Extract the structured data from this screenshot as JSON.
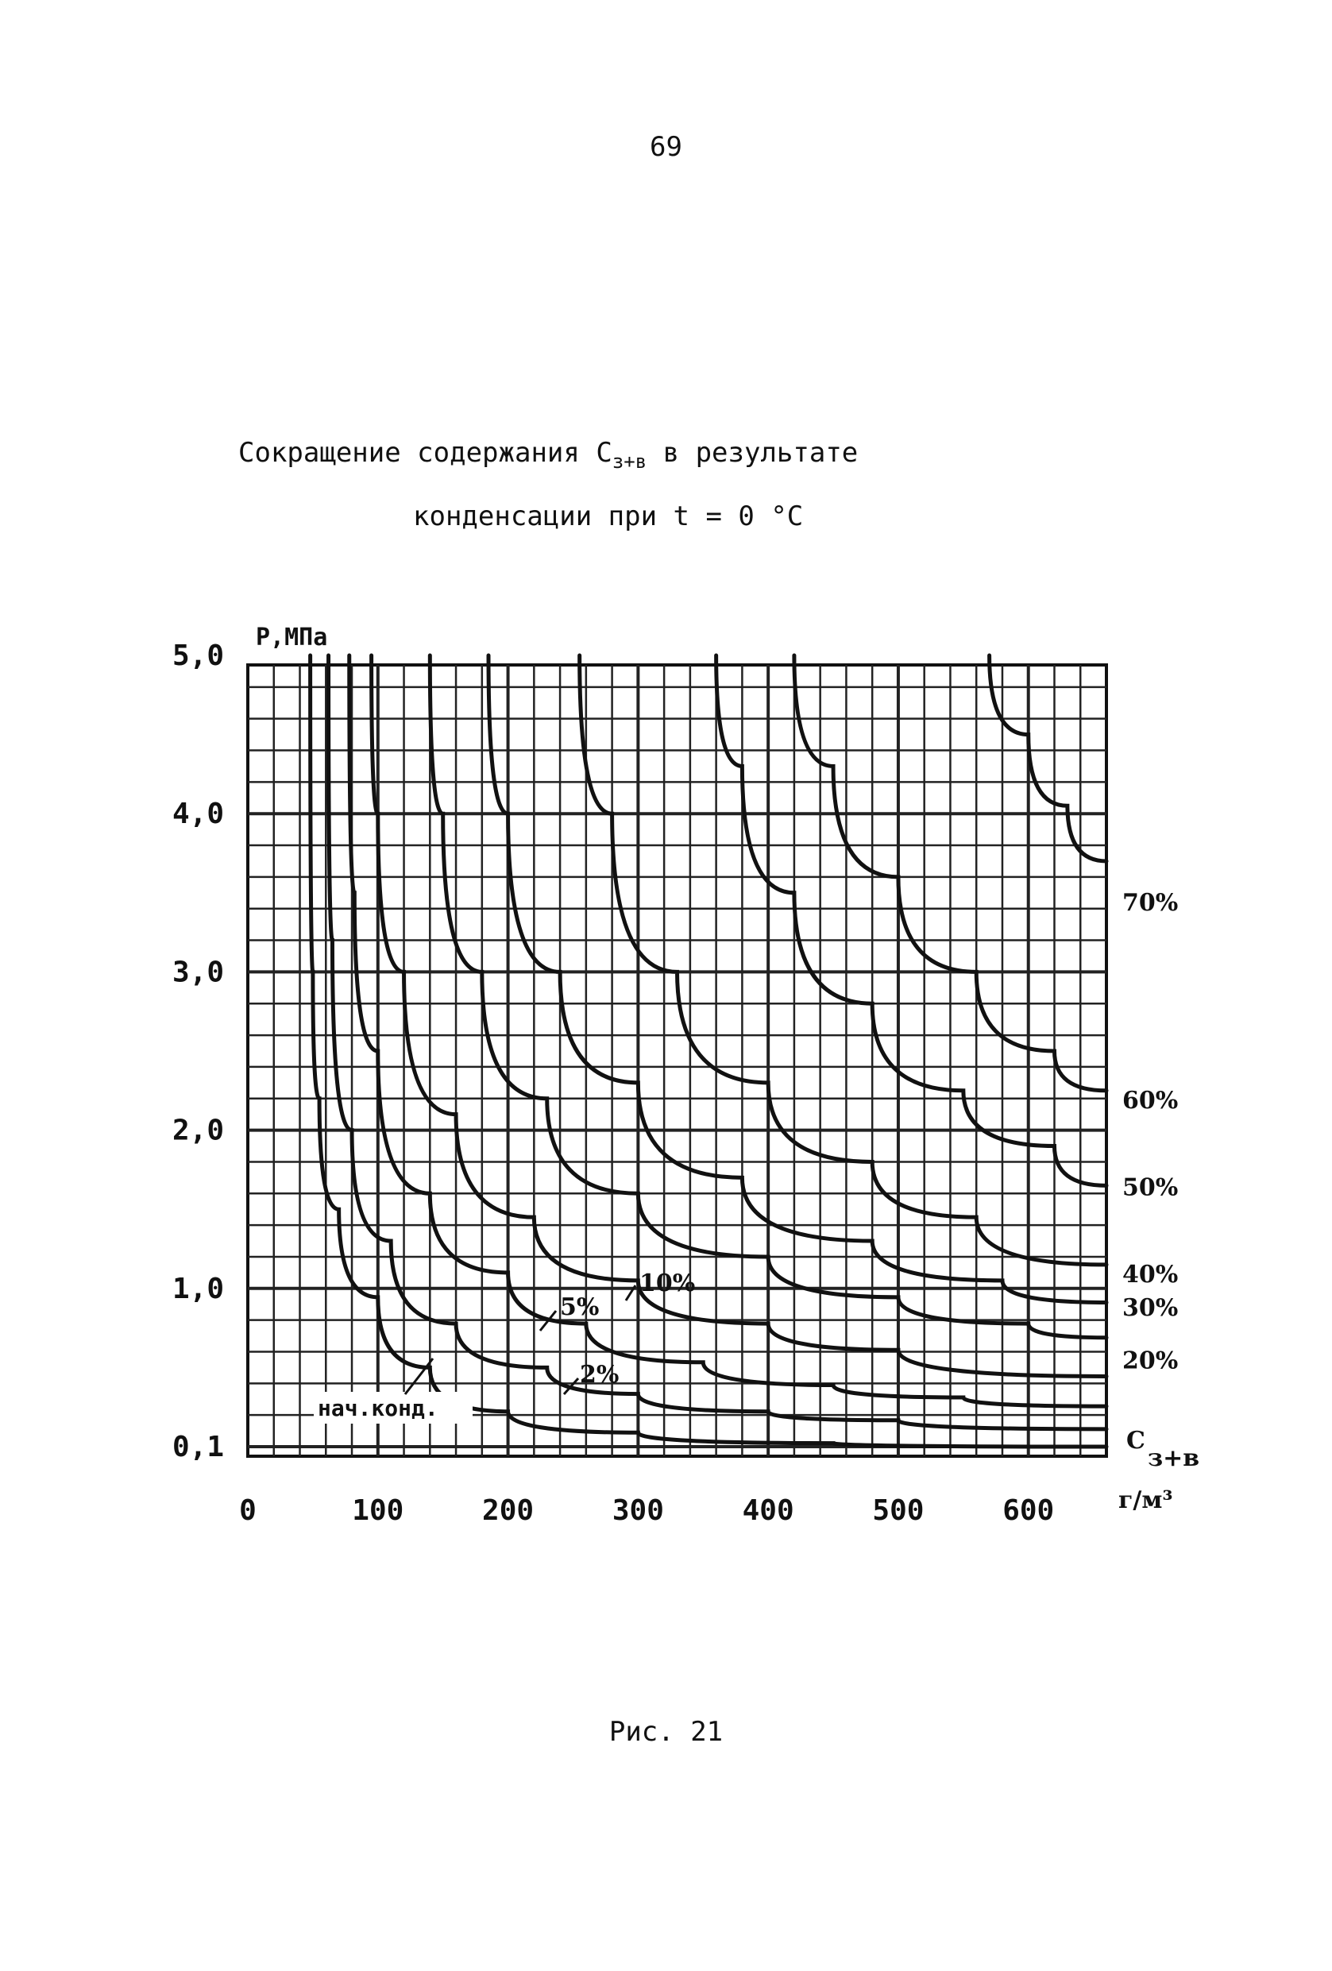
{
  "page": {
    "number": "69",
    "title_line1_pre": "Сокращение содержания С",
    "title_line1_sub": "з+в",
    "title_line1_post": " в результате",
    "title_line2": "конденсации при t = 0 °C",
    "figure_caption": "Рис. 21"
  },
  "chart_data": {
    "type": "line",
    "ylabel": "Р,МПа",
    "xlabel": "Сз+в, г/м³",
    "xlim": [
      0,
      660
    ],
    "ylim": [
      0.1,
      5.0
    ],
    "grid": true,
    "x_ticks": [
      "0",
      "100",
      "200",
      "300",
      "400",
      "500",
      "600"
    ],
    "y_ticks": [
      "0,1",
      "1,0",
      "2,0",
      "3,0",
      "4,0",
      "5,0"
    ],
    "annotation": "нач.конд.",
    "series": [
      {
        "name": "нач.конд.",
        "label_near_curve": true,
        "points": [
          [
            48,
            5.0
          ],
          [
            50,
            3.0
          ],
          [
            55,
            2.2
          ],
          [
            70,
            1.5
          ],
          [
            100,
            0.95
          ],
          [
            140,
            0.55
          ],
          [
            200,
            0.3
          ],
          [
            300,
            0.18
          ],
          [
            450,
            0.12
          ],
          [
            660,
            0.1
          ]
        ]
      },
      {
        "name": "2%",
        "points": [
          [
            62,
            5.0
          ],
          [
            65,
            3.2
          ],
          [
            80,
            2.0
          ],
          [
            110,
            1.3
          ],
          [
            160,
            0.8
          ],
          [
            230,
            0.55
          ],
          [
            300,
            0.4
          ],
          [
            400,
            0.3
          ],
          [
            500,
            0.25
          ],
          [
            660,
            0.2
          ]
        ]
      },
      {
        "name": "5%",
        "points": [
          [
            78,
            5.0
          ],
          [
            82,
            3.5
          ],
          [
            100,
            2.5
          ],
          [
            140,
            1.6
          ],
          [
            200,
            1.1
          ],
          [
            260,
            0.8
          ],
          [
            350,
            0.58
          ],
          [
            450,
            0.45
          ],
          [
            550,
            0.38
          ],
          [
            660,
            0.33
          ]
        ]
      },
      {
        "name": "10%",
        "points": [
          [
            95,
            5.0
          ],
          [
            100,
            4.0
          ],
          [
            120,
            3.0
          ],
          [
            160,
            2.1
          ],
          [
            220,
            1.45
          ],
          [
            300,
            1.05
          ],
          [
            400,
            0.8
          ],
          [
            500,
            0.65
          ],
          [
            660,
            0.5
          ]
        ]
      },
      {
        "name": "20%",
        "points": [
          [
            140,
            5.0
          ],
          [
            150,
            4.0
          ],
          [
            180,
            3.0
          ],
          [
            230,
            2.2
          ],
          [
            300,
            1.6
          ],
          [
            400,
            1.2
          ],
          [
            500,
            0.95
          ],
          [
            600,
            0.8
          ],
          [
            660,
            0.72
          ]
        ]
      },
      {
        "name": "30%",
        "points": [
          [
            185,
            5.0
          ],
          [
            200,
            4.0
          ],
          [
            240,
            3.0
          ],
          [
            300,
            2.3
          ],
          [
            380,
            1.7
          ],
          [
            480,
            1.3
          ],
          [
            580,
            1.05
          ],
          [
            660,
            0.92
          ]
        ]
      },
      {
        "name": "40%",
        "points": [
          [
            255,
            5.0
          ],
          [
            280,
            4.0
          ],
          [
            330,
            3.0
          ],
          [
            400,
            2.3
          ],
          [
            480,
            1.8
          ],
          [
            560,
            1.45
          ],
          [
            660,
            1.15
          ]
        ]
      },
      {
        "name": "50%",
        "points": [
          [
            360,
            5.0
          ],
          [
            380,
            4.3
          ],
          [
            420,
            3.5
          ],
          [
            480,
            2.8
          ],
          [
            550,
            2.25
          ],
          [
            620,
            1.9
          ],
          [
            660,
            1.65
          ]
        ]
      },
      {
        "name": "60%",
        "points": [
          [
            420,
            5.0
          ],
          [
            450,
            4.3
          ],
          [
            500,
            3.6
          ],
          [
            560,
            3.0
          ],
          [
            620,
            2.5
          ],
          [
            660,
            2.25
          ]
        ]
      },
      {
        "name": "70%",
        "points": [
          [
            570,
            5.0
          ],
          [
            600,
            4.5
          ],
          [
            630,
            4.05
          ],
          [
            660,
            3.7
          ]
        ]
      }
    ],
    "curve_labels_right": [
      "70%",
      "60%",
      "50%",
      "40%",
      "30%",
      "20%"
    ],
    "curve_labels_inside": [
      "10%",
      "5%",
      "2%"
    ],
    "x_unit_line1": "С",
    "x_unit_sub": "з+в",
    "x_unit_line2": "г/м³"
  }
}
